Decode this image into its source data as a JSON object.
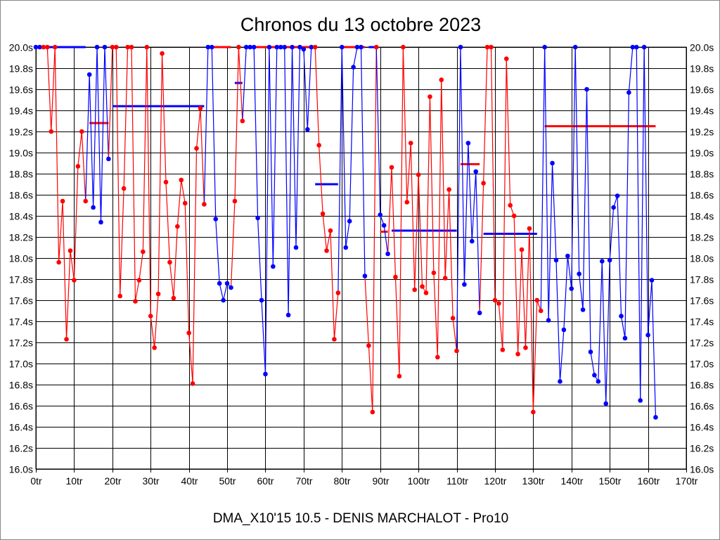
{
  "chart_data": {
    "type": "line",
    "title": "Chronos du 13 octobre 2023",
    "footer": "DMA_X10'15 10.5 - DENIS MARCHALOT - Pro10",
    "xlim": [
      0,
      170
    ],
    "ylim": [
      16.0,
      20.0
    ],
    "x_ticks": [
      "0tr",
      "10tr",
      "20tr",
      "30tr",
      "40tr",
      "50tr",
      "60tr",
      "70tr",
      "80tr",
      "90tr",
      "100tr",
      "110tr",
      "120tr",
      "130tr",
      "140tr",
      "150tr",
      "160tr",
      "170tr"
    ],
    "y_ticks": [
      "16.0s",
      "16.2s",
      "16.4s",
      "16.6s",
      "16.8s",
      "17.0s",
      "17.2s",
      "17.4s",
      "17.6s",
      "17.8s",
      "18.0s",
      "18.2s",
      "18.4s",
      "18.6s",
      "18.8s",
      "19.0s",
      "19.2s",
      "19.4s",
      "19.6s",
      "19.8s",
      "20.0s"
    ],
    "grid": true,
    "colors": {
      "red": "#ff0000",
      "blue": "#0000ff"
    },
    "lap_times": [
      20.0,
      20.0,
      20.0,
      20.0,
      19.2,
      20.0,
      17.96,
      18.54,
      17.23,
      18.07,
      17.79,
      18.87,
      19.2,
      18.54,
      19.74,
      18.48,
      20.0,
      18.34,
      20.0,
      18.94,
      20.0,
      20.0,
      17.64,
      18.66,
      20.0,
      20.0,
      17.59,
      17.79,
      18.06,
      20.0,
      17.45,
      17.15,
      17.66,
      19.94,
      18.72,
      17.96,
      17.62,
      18.3,
      18.74,
      18.52,
      17.29,
      16.81,
      19.04,
      19.42,
      18.51,
      20.0,
      20.0,
      18.37,
      17.76,
      17.6,
      17.76,
      17.72,
      18.54,
      20.0,
      19.3,
      20.0,
      20.0,
      20.0,
      18.38,
      17.6,
      16.9,
      20.0,
      17.92,
      20.0,
      20.0,
      20.0,
      17.46,
      20.0,
      18.1,
      20.0,
      19.98,
      19.22,
      20.0,
      20.0,
      19.07,
      18.42,
      18.07,
      18.26,
      17.23,
      17.67,
      20.0,
      18.1,
      18.35,
      19.81,
      20.0,
      20.0,
      17.83,
      17.17,
      16.54,
      20.0,
      18.41,
      18.31,
      18.04,
      18.86,
      17.82,
      16.88,
      20.0,
      18.53,
      19.09,
      17.7,
      18.79,
      17.73,
      17.67,
      19.53,
      17.86,
      17.06,
      19.69,
      17.81,
      18.65,
      17.43,
      17.12,
      20.0,
      17.75,
      19.09,
      18.16,
      18.82,
      17.48,
      18.71,
      20.0,
      20.0,
      17.6,
      17.57,
      17.13,
      19.89,
      18.5,
      18.4,
      17.09,
      18.08,
      17.15,
      18.28,
      16.54,
      17.6,
      17.5,
      20.0,
      17.41,
      18.9,
      17.98,
      16.83,
      17.32,
      18.02,
      17.71,
      20.0,
      17.85,
      17.51,
      19.6,
      17.11,
      16.89,
      16.83,
      17.97,
      16.62,
      17.98,
      18.48,
      18.59,
      17.45,
      17.24,
      19.57,
      20.0,
      20.0,
      16.65,
      20.0,
      17.27,
      17.79,
      16.49
    ],
    "color_runs": [
      {
        "from": 0,
        "to": 1,
        "color": "blue"
      },
      {
        "from": 2,
        "to": 13,
        "color": "red"
      },
      {
        "from": 14,
        "to": 19,
        "color": "blue"
      },
      {
        "from": 20,
        "to": 44,
        "color": "red"
      },
      {
        "from": 45,
        "to": 51,
        "color": "blue"
      },
      {
        "from": 52,
        "to": 54,
        "color": "red"
      },
      {
        "from": 55,
        "to": 72,
        "color": "blue"
      },
      {
        "from": 73,
        "to": 79,
        "color": "red"
      },
      {
        "from": 80,
        "to": 86,
        "color": "blue"
      },
      {
        "from": 87,
        "to": 89,
        "color": "red"
      },
      {
        "from": 90,
        "to": 92,
        "color": "blue"
      },
      {
        "from": 93,
        "to": 110,
        "color": "red"
      },
      {
        "from": 111,
        "to": 116,
        "color": "blue"
      },
      {
        "from": 117,
        "to": 132,
        "color": "red"
      },
      {
        "from": 133,
        "to": 162,
        "color": "blue"
      }
    ],
    "averages": [
      {
        "from": 0,
        "to": 3,
        "value": 20.0,
        "color": "red"
      },
      {
        "from": 3,
        "to": 13,
        "value": 20.0,
        "color": "blue"
      },
      {
        "from": 14,
        "to": 19,
        "value": 19.28,
        "color": "red"
      },
      {
        "from": 20,
        "to": 44,
        "value": 19.44,
        "color": "blue"
      },
      {
        "from": 46,
        "to": 51,
        "value": 20.0,
        "color": "red"
      },
      {
        "from": 52,
        "to": 54,
        "value": 19.66,
        "color": "blue"
      },
      {
        "from": 55,
        "to": 73,
        "value": 20.0,
        "color": "red"
      },
      {
        "from": 73,
        "to": 79,
        "value": 18.7,
        "color": "blue"
      },
      {
        "from": 80,
        "to": 86,
        "value": 20.0,
        "color": "red"
      },
      {
        "from": 87,
        "to": 89,
        "value": 20.0,
        "color": "blue"
      },
      {
        "from": 90,
        "to": 92,
        "value": 18.25,
        "color": "red"
      },
      {
        "from": 93,
        "to": 110,
        "value": 18.26,
        "color": "blue"
      },
      {
        "from": 111,
        "to": 116,
        "value": 18.89,
        "color": "red"
      },
      {
        "from": 117,
        "to": 131,
        "value": 18.23,
        "color": "blue"
      },
      {
        "from": 133,
        "to": 162,
        "value": 19.25,
        "color": "red"
      }
    ]
  }
}
